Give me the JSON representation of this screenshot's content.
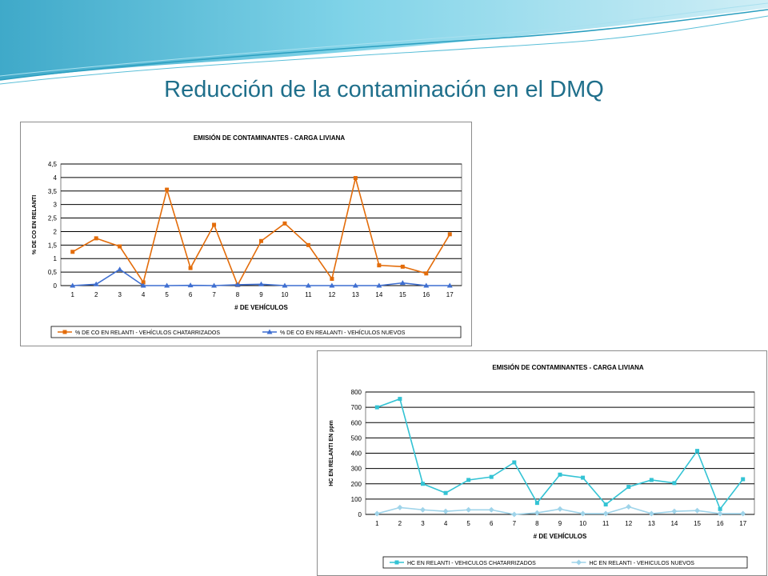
{
  "slide": {
    "title": "Reducción de la contaminación en el DMQ"
  },
  "colors": {
    "title": "#1f6f8b",
    "banner_light": "#cfeef6",
    "banner_mid": "#7fd3e8",
    "banner_dark": "#3fa9c9"
  },
  "chart_data": [
    {
      "type": "line",
      "title": "EMISIÓN DE CONTAMINANTES  - CARGA LIVIANA",
      "xlabel": "# DE VEHÍCULOS",
      "ylabel": "% DE CO EN RELANTI",
      "categories": [
        "1",
        "2",
        "3",
        "4",
        "5",
        "6",
        "7",
        "8",
        "9",
        "10",
        "11",
        "12",
        "13",
        "14",
        "15",
        "16",
        "17"
      ],
      "ylim": [
        0,
        4.5
      ],
      "yticks": [
        "0",
        "0,5",
        "1",
        "1,5",
        "2",
        "2,5",
        "3",
        "3,5",
        "4",
        "4,5"
      ],
      "grid": true,
      "legend_position": "bottom",
      "series": [
        {
          "name": "% DE CO EN RELANTI - VEHÍCULOS CHATARRIZADOS",
          "color": "#e36c0a",
          "marker": "square",
          "values": [
            1.25,
            1.75,
            1.45,
            0.12,
            3.55,
            0.65,
            2.25,
            0.02,
            1.65,
            2.3,
            1.5,
            0.25,
            3.98,
            0.75,
            0.7,
            0.45,
            1.9
          ]
        },
        {
          "name": "% DE CO EN REALANTI - VEHÍCULOS NUEVOS",
          "color": "#3f6fd1",
          "marker": "triangle",
          "values": [
            0.0,
            0.05,
            0.6,
            0.0,
            0.0,
            0.01,
            0.0,
            0.03,
            0.05,
            0.0,
            0.0,
            0.0,
            0.0,
            0.0,
            0.1,
            0.0,
            0.0
          ]
        }
      ]
    },
    {
      "type": "line",
      "title": "EMISIÓN DE CONTAMINANTES  - CARGA LIVIANA",
      "xlabel": "# DE VEHÍCULOS",
      "ylabel": "HC EN RELANTI EN ppm",
      "categories": [
        "1",
        "2",
        "3",
        "4",
        "5",
        "6",
        "7",
        "8",
        "9",
        "10",
        "11",
        "12",
        "13",
        "14",
        "15",
        "16",
        "17"
      ],
      "ylim": [
        0,
        800
      ],
      "yticks": [
        "0",
        "100",
        "200",
        "300",
        "400",
        "500",
        "600",
        "700",
        "800"
      ],
      "grid": true,
      "legend_position": "bottom",
      "series": [
        {
          "name": "HC EN RELANTI - VEHICULOS CHATARRIZADOS",
          "color": "#33c3d4",
          "marker": "square",
          "values": [
            700,
            755,
            200,
            140,
            225,
            245,
            340,
            75,
            260,
            240,
            65,
            180,
            225,
            205,
            415,
            35,
            230
          ]
        },
        {
          "name": "HC EN RELANTI - VEHICULOS NUEVOS",
          "color": "#9fd4ea",
          "marker": "diamond",
          "values": [
            5,
            45,
            30,
            20,
            30,
            30,
            0,
            10,
            35,
            5,
            5,
            50,
            5,
            20,
            25,
            5,
            5
          ]
        }
      ]
    }
  ]
}
